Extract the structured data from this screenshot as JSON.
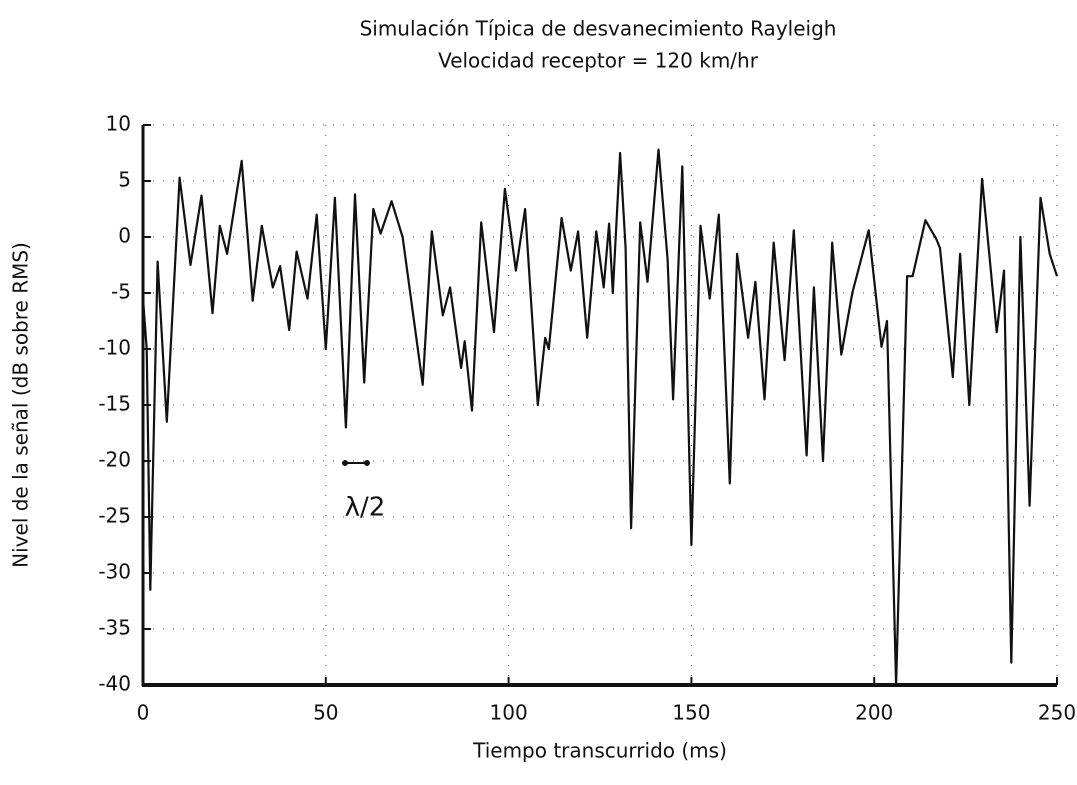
{
  "chart_data": {
    "type": "line",
    "title": "Simulación Típica de desvanecimiento Rayleigh",
    "subtitle": "Velocidad receptor = 120 km/hr",
    "x_label": "Tiempo transcurrido (ms)",
    "y_label": "Nivel de la señal (dB sobre RMS)",
    "annotation": "λ/2",
    "xlim": [
      0,
      250
    ],
    "ylim": [
      -40,
      10
    ],
    "xticks": [
      0,
      50,
      100,
      150,
      200,
      250
    ],
    "yticks": [
      -40,
      -35,
      -30,
      -25,
      -20,
      -15,
      -10,
      -5,
      0,
      5,
      10
    ],
    "grid": true,
    "series": [
      {
        "name": "Nivel",
        "color": "#111111",
        "x": [
          0,
          1,
          2,
          4,
          6.5,
          10,
          13,
          16,
          19,
          21,
          23,
          27,
          30,
          32.5,
          35.5,
          37.5,
          40,
          42,
          45,
          47.5,
          50,
          52.5,
          55.5,
          58,
          60.5,
          63,
          65,
          68,
          71,
          76.5,
          79,
          82,
          84,
          87,
          88,
          90,
          92.5,
          96,
          99,
          102,
          104.5,
          108,
          110,
          111,
          114.5,
          117,
          119,
          121.5,
          124,
          126,
          127.5,
          128.5,
          130.5,
          132,
          133.5,
          136,
          138,
          141,
          143.5,
          145,
          147.5,
          150,
          152.5,
          155,
          157.5,
          160.5,
          162.5,
          165.5,
          167.5,
          170,
          172.5,
          175.5,
          178,
          181.5,
          183.5,
          186,
          188.5,
          191,
          194,
          198.5,
          202,
          203.5,
          206,
          209,
          210.5,
          214,
          217,
          218,
          221.5,
          223.5,
          226,
          229.5,
          233.5,
          235.5,
          237.5,
          240,
          242.5,
          245.5,
          248,
          250
        ],
        "values": [
          -5.5,
          -10,
          -31.5,
          -2.2,
          -16.5,
          5.3,
          -2.5,
          3.7,
          -6.8,
          1,
          -1.5,
          6.8,
          -5.7,
          1,
          -4.5,
          -2.6,
          -8.3,
          -1.3,
          -5.5,
          2,
          -10,
          3.5,
          -17,
          3.8,
          -13,
          2.5,
          0.3,
          3.2,
          0,
          -13.2,
          0.5,
          -7,
          -4.5,
          -11.7,
          -9.3,
          -15.5,
          1.3,
          -8.5,
          4.3,
          -3,
          2.5,
          -15,
          -9,
          -10,
          1.7,
          -3,
          0.5,
          -9,
          0.5,
          -4.5,
          1.2,
          -5,
          7.5,
          -1,
          -26,
          1.3,
          -4,
          7.8,
          -2,
          -14.5,
          6.3,
          -27.5,
          1,
          -5.5,
          2,
          -22,
          -1.5,
          -9,
          -4,
          -14.5,
          -0.5,
          -11,
          0.6,
          -19.5,
          -4.5,
          -20,
          -0.5,
          -10.5,
          -5,
          0.6,
          -9.8,
          -7.5,
          -40,
          -3.5,
          -3.5,
          1.5,
          -0.2,
          -1,
          -12.5,
          -1.5,
          -15,
          5.2,
          -8.5,
          -3,
          -38,
          0,
          -24,
          3.5,
          -1.5,
          -3.5
        ]
      }
    ]
  }
}
